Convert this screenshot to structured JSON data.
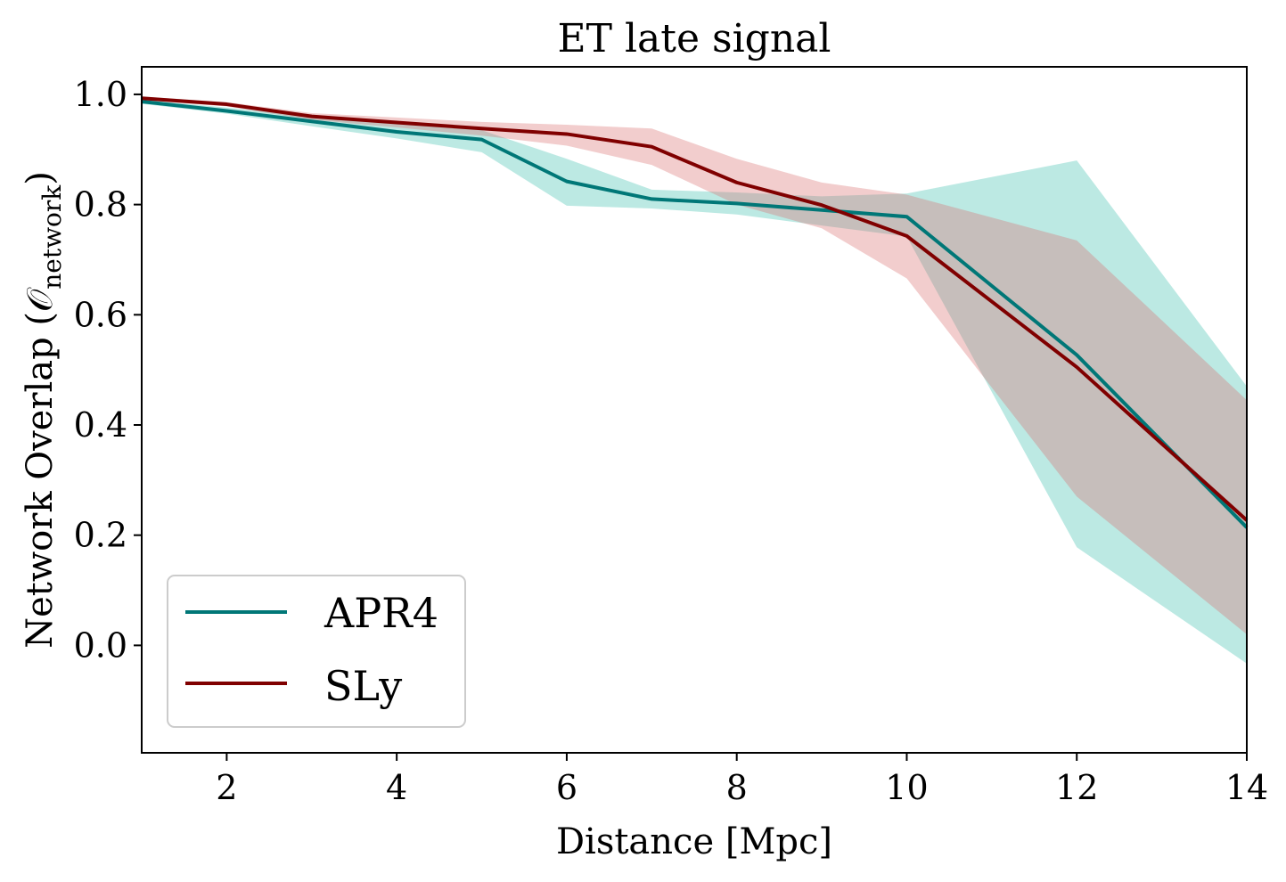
{
  "chart_data": {
    "type": "line",
    "title": "ET late signal",
    "xlabel": "Distance [Mpc]",
    "ylabel": "Network Overlap (𝒪",
    "ylabel_sub": "network",
    "ylabel_close": ")",
    "xlim": [
      1,
      14
    ],
    "ylim": [
      -0.195,
      1.05
    ],
    "xticks": [
      2,
      4,
      6,
      8,
      10,
      12,
      14
    ],
    "xtick_labels": [
      "2",
      "4",
      "6",
      "8",
      "10",
      "12",
      "14"
    ],
    "yticks": [
      0.0,
      0.2,
      0.4,
      0.6,
      0.8,
      1.0
    ],
    "ytick_labels": [
      "0.0",
      "0.2",
      "0.4",
      "0.6",
      "0.8",
      "1.0"
    ],
    "legend_position": "lower-left",
    "x": [
      1,
      2,
      3,
      4,
      5,
      6,
      7,
      8,
      9,
      10,
      12,
      14
    ],
    "series": [
      {
        "name": "APR4",
        "color": "#007777",
        "band_color": "#40bfb0",
        "values": [
          0.987,
          0.97,
          0.951,
          0.932,
          0.918,
          0.842,
          0.81,
          0.802,
          0.79,
          0.778,
          0.527,
          0.214
        ],
        "lower": [
          0.983,
          0.965,
          0.942,
          0.92,
          0.895,
          0.798,
          0.793,
          0.782,
          0.762,
          0.742,
          0.178,
          -0.033
        ],
        "upper": [
          0.99,
          0.976,
          0.96,
          0.946,
          0.935,
          0.883,
          0.827,
          0.822,
          0.815,
          0.82,
          0.88,
          0.47
        ]
      },
      {
        "name": "SLy",
        "color": "#800000",
        "band_color": "#d97070",
        "values": [
          0.993,
          0.982,
          0.96,
          0.949,
          0.938,
          0.928,
          0.905,
          0.84,
          0.799,
          0.743,
          0.505,
          0.227
        ],
        "lower": [
          0.99,
          0.978,
          0.954,
          0.94,
          0.925,
          0.907,
          0.872,
          0.8,
          0.757,
          0.666,
          0.27,
          0.02
        ],
        "upper": [
          0.996,
          0.986,
          0.966,
          0.958,
          0.95,
          0.945,
          0.938,
          0.883,
          0.84,
          0.818,
          0.735,
          0.445
        ]
      }
    ]
  }
}
